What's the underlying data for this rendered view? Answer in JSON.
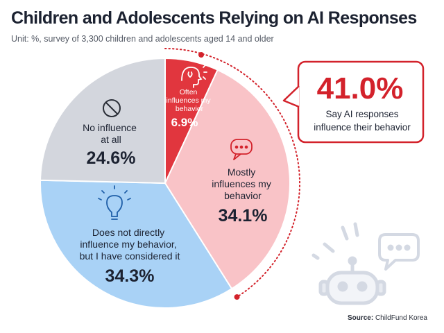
{
  "header": {
    "title": "Children and Adolescents Relying on AI Responses",
    "subtitle": "Unit: %, survey of 3,300 children and adolescents aged 14 and older"
  },
  "callout": {
    "value": "41.0%",
    "line1": "Say AI responses",
    "line2": "influence their behavior"
  },
  "source": {
    "label": "Source:",
    "name": "ChildFund Korea"
  },
  "colors": {
    "often": "#e1363e",
    "mostly": "#f9c3c7",
    "not_directly": "#a9d2f6",
    "no_influence": "#d3d6dd",
    "accent": "#d3222b"
  },
  "chart_data": {
    "type": "pie",
    "title": "Children and Adolescents Relying on AI Responses",
    "unit": "%",
    "slices": [
      {
        "label": "Often influences my behavior",
        "value": 6.9,
        "display": "6.9%",
        "color": "#e1363e",
        "icon": "head-icon",
        "lines": [
          "Often",
          "influences my",
          "behavior"
        ]
      },
      {
        "label": "Mostly influences my behavior",
        "value": 34.1,
        "display": "34.1%",
        "color": "#f9c3c7",
        "icon": "speech-bubble-icon",
        "lines": [
          "Mostly",
          "influences my",
          "behavior"
        ]
      },
      {
        "label": "Does not directly influence my behavior, but I have considered it",
        "value": 34.3,
        "display": "34.3%",
        "color": "#a9d2f6",
        "icon": "lightbulb-icon",
        "lines": [
          "Does not directly",
          "influence my behavior,",
          "but I have considered it"
        ]
      },
      {
        "label": "No influence at all",
        "value": 24.6,
        "display": "24.6%",
        "color": "#d3d6dd",
        "icon": "no-entry-icon",
        "lines": [
          "No influence",
          "at all"
        ]
      }
    ],
    "highlight_total": 41.0
  }
}
